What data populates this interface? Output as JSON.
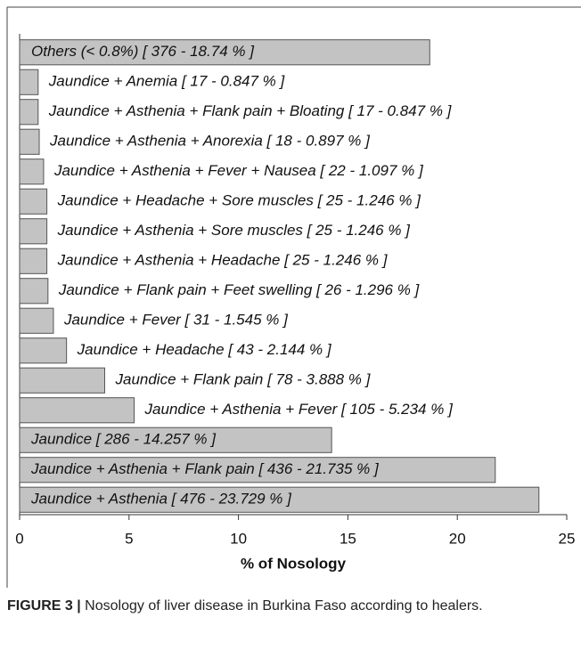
{
  "chart_data": {
    "type": "barh",
    "categories": [
      "Others (< 0.8%) [ 376 - 18.74 % ]",
      "Jaundice + Anemia [ 17 - 0.847 % ]",
      "Jaundice + Asthenia + Flank pain + Bloating [ 17 - 0.847 % ]",
      "Jaundice + Asthenia + Anorexia [ 18 - 0.897 % ]",
      "Jaundice + Asthenia + Fever + Nausea [ 22 - 1.097 % ]",
      "Jaundice + Headache + Sore muscles [ 25 - 1.246 % ]",
      "Jaundice + Asthenia + Sore muscles [ 25 - 1.246 % ]",
      "Jaundice + Asthenia + Headache [ 25 - 1.246 % ]",
      "Jaundice + Flank pain + Feet swelling [ 26 - 1.296 % ]",
      "Jaundice + Fever [ 31 - 1.545 % ]",
      "Jaundice + Headache [ 43 - 2.144 % ]",
      "Jaundice + Flank pain [ 78 - 3.888 % ]",
      "Jaundice + Asthenia + Fever [ 105 - 5.234 % ]",
      "Jaundice [ 286 - 14.257 % ]",
      "Jaundice + Asthenia + Flank pain [ 436 - 21.735 % ]",
      "Jaundice + Asthenia [ 476 - 23.729 % ]"
    ],
    "values": [
      18.74,
      0.847,
      0.847,
      0.897,
      1.097,
      1.246,
      1.246,
      1.246,
      1.296,
      1.545,
      2.144,
      3.888,
      5.234,
      14.257,
      21.735,
      23.729
    ],
    "color": "#c3c3c3",
    "xlabel": "% of Nosology",
    "xlim": [
      0,
      25
    ],
    "xticks": [
      0,
      5,
      10,
      15,
      20,
      25
    ]
  },
  "caption": {
    "label": "FIGURE 3 |",
    "text": "Nosology of liver disease in Burkina Faso according to healers."
  }
}
